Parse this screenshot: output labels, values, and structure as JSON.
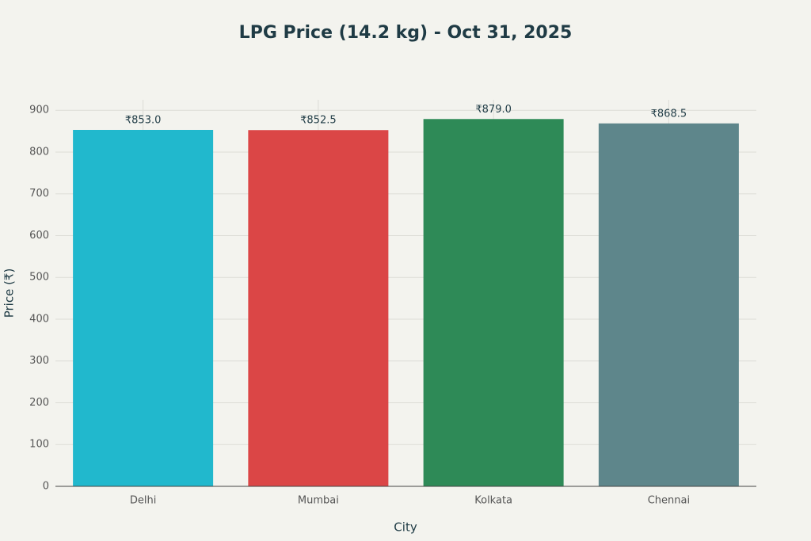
{
  "chart_data": {
    "type": "bar",
    "title": "LPG Price (14.2 kg) - Oct 31, 2025",
    "x_label": "City",
    "y_label": "Price (₹)",
    "categories": [
      "Delhi",
      "Mumbai",
      "Kolkata",
      "Chennai"
    ],
    "values": [
      853.0,
      852.5,
      879.0,
      868.5
    ],
    "value_labels": [
      "₹853.0",
      "₹852.5",
      "₹879.0",
      "₹868.5"
    ],
    "colors": [
      "#21b8cd",
      "#db4646",
      "#2e8a57",
      "#5e868b"
    ],
    "ylim": [
      0,
      925
    ],
    "yticks": [
      0,
      100,
      200,
      300,
      400,
      500,
      600,
      700,
      800,
      900
    ],
    "grid": true
  }
}
